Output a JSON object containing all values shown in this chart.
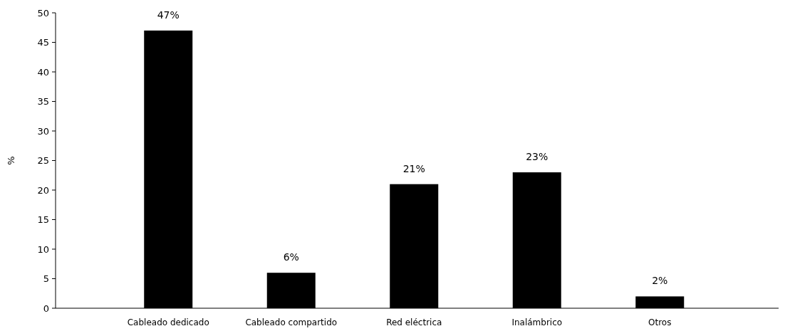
{
  "chart_data": {
    "type": "bar",
    "ylabel": "%",
    "categories": [
      "Cableado dedicado",
      "Cableado compartido",
      "Red eléctrica",
      "Inalámbrico",
      "Otros"
    ],
    "values": [
      47,
      6,
      21,
      23,
      2
    ],
    "value_labels": [
      "47%",
      "6%",
      "21%",
      "23%",
      "2%"
    ],
    "color": "#000000",
    "ylim": [
      0,
      50
    ],
    "yticks": [
      0,
      5,
      10,
      15,
      20,
      25,
      30,
      35,
      40,
      45,
      50
    ],
    "grid": false
  }
}
